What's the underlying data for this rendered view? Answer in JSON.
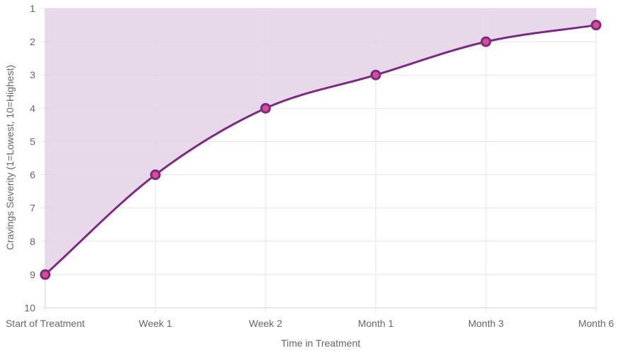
{
  "chart_data": {
    "type": "area",
    "categories": [
      "Start of Treatment",
      "Week 1",
      "Week 2",
      "Month 1",
      "Month 3",
      "Month 6"
    ],
    "series": [
      {
        "values": [
          9,
          6,
          4,
          3,
          2,
          1.5
        ]
      }
    ],
    "xlabel": "Time in Treatment",
    "ylabel": "Cravings Severity (1=Lowest, 10=Highest)",
    "ylim": [
      1,
      10
    ],
    "y_reversed": true,
    "y_ticks": [
      1,
      2,
      3,
      4,
      5,
      6,
      7,
      8,
      9,
      10
    ],
    "fill_toward": "top",
    "grid": true,
    "colors": {
      "line": "#7b2a82",
      "fill": "#e3d2e6",
      "marker_fill": "#d94c9b",
      "marker_stroke": "#7b2a82",
      "grid": "#e5e5e5"
    }
  }
}
